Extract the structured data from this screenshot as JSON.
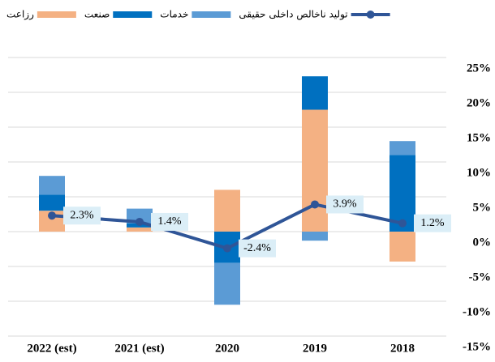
{
  "chart_data": {
    "type": "bar",
    "categories": [
      "2022 (est)",
      "2021 (est)",
      "2020",
      "2019",
      "2018"
    ],
    "series": [
      {
        "name": "رزاعت",
        "color": "#f4b183",
        "values": [
          3.0,
          0.6,
          6.0,
          17.5,
          -4.3
        ]
      },
      {
        "name": "صنعت",
        "color": "#0070c0",
        "values": [
          2.3,
          0.6,
          -4.5,
          4.8,
          11.0
        ]
      },
      {
        "name": "خدمات",
        "color": "#5b9bd5",
        "values": [
          2.7,
          2.1,
          -6.0,
          -1.3,
          2.0
        ]
      },
      {
        "name": "تولید ناخالص داخلی حقیقی",
        "type": "line",
        "color": "#2f5597",
        "values": [
          2.3,
          1.4,
          -2.4,
          3.9,
          1.2
        ],
        "value_labels": [
          "2.3%",
          "1.4%",
          "-2.4%",
          "3.9%",
          "1.2%"
        ]
      }
    ],
    "ylim": [
      -15,
      25
    ],
    "yticks": [
      {
        "value": -15,
        "label": "-15%"
      },
      {
        "value": -10,
        "label": "-10%"
      },
      {
        "value": -5,
        "label": "-5%"
      },
      {
        "value": 0,
        "label": "0%"
      },
      {
        "value": 5,
        "label": "5%"
      },
      {
        "value": 10,
        "label": "10%"
      },
      {
        "value": 15,
        "label": "15%"
      },
      {
        "value": 20,
        "label": "20%"
      },
      {
        "value": 25,
        "label": "25%"
      }
    ],
    "grid": true,
    "legend": "top"
  }
}
